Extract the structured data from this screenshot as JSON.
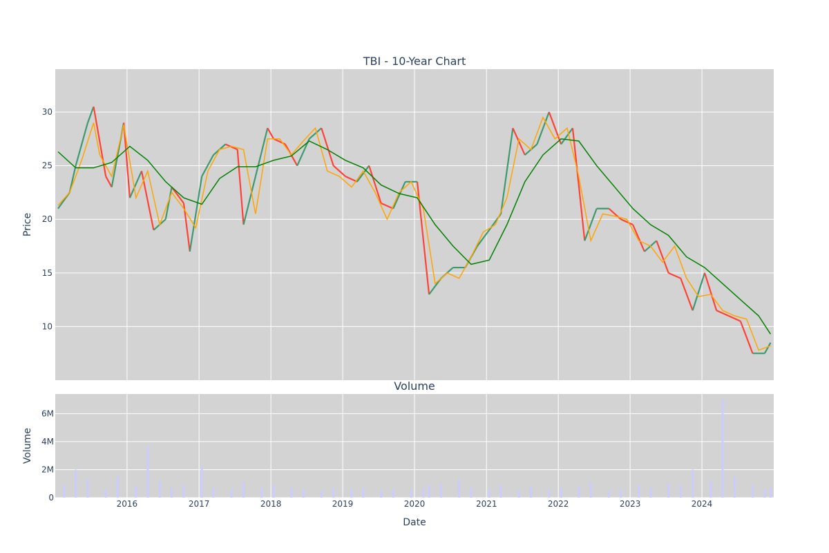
{
  "chart_data": [
    {
      "type": "line",
      "title": "TBI - 10-Year Chart",
      "ylabel": "Price",
      "ylim": [
        5,
        34
      ],
      "xlim": [
        "2015-01-01",
        "2024-12-31"
      ],
      "y_ticks": [
        10,
        15,
        20,
        25,
        30
      ],
      "grid": true,
      "background": "#d3d3d3",
      "series": [
        {
          "role": "price",
          "color_up": "#3d9970",
          "color_down": "#ff4136",
          "dates": [
            "2015-01",
            "2015-03",
            "2015-04",
            "2015-06",
            "2015-07",
            "2015-09",
            "2015-10",
            "2015-12",
            "2016-01",
            "2016-03",
            "2016-05",
            "2016-07",
            "2016-08",
            "2016-10",
            "2016-11",
            "2017-01",
            "2017-03",
            "2017-05",
            "2017-07",
            "2017-08",
            "2017-10",
            "2017-12",
            "2018-01",
            "2018-03",
            "2018-05",
            "2018-07",
            "2018-09",
            "2018-11",
            "2019-01",
            "2019-03",
            "2019-05",
            "2019-07",
            "2019-09",
            "2019-11",
            "2020-01",
            "2020-03",
            "2020-05",
            "2020-07",
            "2020-09",
            "2020-11",
            "2021-01",
            "2021-03",
            "2021-05",
            "2021-07",
            "2021-09",
            "2021-11",
            "2022-01",
            "2022-03",
            "2022-05",
            "2022-07",
            "2022-09",
            "2022-11",
            "2023-01",
            "2023-03",
            "2023-05",
            "2023-07",
            "2023-09",
            "2023-11",
            "2024-01",
            "2024-03",
            "2024-05",
            "2024-07",
            "2024-09",
            "2024-11",
            "2024-12"
          ],
          "values": [
            21.0,
            22.5,
            25.0,
            29.0,
            30.5,
            24.0,
            23.0,
            29.0,
            22.0,
            24.5,
            19.0,
            20.0,
            23.0,
            21.5,
            17.0,
            24.0,
            26.0,
            27.0,
            26.5,
            19.5,
            24.0,
            28.5,
            27.5,
            27.0,
            25.0,
            27.5,
            28.5,
            25.0,
            24.0,
            23.5,
            25.0,
            21.5,
            21.0,
            23.5,
            23.5,
            13.0,
            14.5,
            15.5,
            15.5,
            17.5,
            19.0,
            20.5,
            28.5,
            26.0,
            27.0,
            30.0,
            27.0,
            28.5,
            18.0,
            21.0,
            21.0,
            20.0,
            19.5,
            17.0,
            18.0,
            15.0,
            14.5,
            11.5,
            15.0,
            11.5,
            11.0,
            10.5,
            7.5,
            7.5,
            8.5
          ]
        },
        {
          "role": "ma-short",
          "color": "#ffa500",
          "dates": [
            "2015-01",
            "2015-03",
            "2015-05",
            "2015-07",
            "2015-08",
            "2015-10",
            "2015-12",
            "2016-02",
            "2016-04",
            "2016-06",
            "2016-08",
            "2016-10",
            "2016-12",
            "2017-02",
            "2017-04",
            "2017-06",
            "2017-08",
            "2017-10",
            "2017-12",
            "2018-02",
            "2018-04",
            "2018-06",
            "2018-08",
            "2018-10",
            "2018-12",
            "2019-02",
            "2019-04",
            "2019-06",
            "2019-08",
            "2019-10",
            "2019-12",
            "2020-02",
            "2020-04",
            "2020-06",
            "2020-08",
            "2020-10",
            "2020-12",
            "2021-02",
            "2021-04",
            "2021-06",
            "2021-08",
            "2021-10",
            "2021-12",
            "2022-02",
            "2022-04",
            "2022-06",
            "2022-08",
            "2022-10",
            "2022-12",
            "2023-02",
            "2023-04",
            "2023-06",
            "2023-08",
            "2023-10",
            "2023-12",
            "2024-02",
            "2024-04",
            "2024-06",
            "2024-08",
            "2024-10",
            "2024-12"
          ],
          "values": [
            21.3,
            22.5,
            25.5,
            29.0,
            26.0,
            24.0,
            28.8,
            22.0,
            24.5,
            19.5,
            22.5,
            21.0,
            19.2,
            24.5,
            26.5,
            26.8,
            26.5,
            20.5,
            27.5,
            27.5,
            26.0,
            27.3,
            28.5,
            24.5,
            24.0,
            23.0,
            24.5,
            22.5,
            20.0,
            22.5,
            23.5,
            21.0,
            14.0,
            15.0,
            14.5,
            16.5,
            18.8,
            19.5,
            22.0,
            27.5,
            26.5,
            29.5,
            27.5,
            28.5,
            24.0,
            18.0,
            20.5,
            20.3,
            20.0,
            18.0,
            17.5,
            16.0,
            17.5,
            14.5,
            12.8,
            13.0,
            11.5,
            11.0,
            10.7,
            7.8,
            8.2
          ]
        },
        {
          "role": "ma-long",
          "color": "#008000",
          "dates": [
            "2015-01",
            "2015-04",
            "2015-07",
            "2015-10",
            "2016-01",
            "2016-04",
            "2016-07",
            "2016-10",
            "2017-01",
            "2017-04",
            "2017-07",
            "2017-10",
            "2018-01",
            "2018-04",
            "2018-07",
            "2018-10",
            "2019-01",
            "2019-04",
            "2019-07",
            "2019-10",
            "2020-01",
            "2020-04",
            "2020-07",
            "2020-10",
            "2021-01",
            "2021-04",
            "2021-07",
            "2021-10",
            "2022-01",
            "2022-04",
            "2022-07",
            "2022-10",
            "2023-01",
            "2023-04",
            "2023-07",
            "2023-10",
            "2024-01",
            "2024-04",
            "2024-07",
            "2024-10",
            "2024-12"
          ],
          "values": [
            26.3,
            24.8,
            24.8,
            25.3,
            26.8,
            25.5,
            23.5,
            22.0,
            21.4,
            23.8,
            24.9,
            24.9,
            25.5,
            25.9,
            27.3,
            26.5,
            25.5,
            24.8,
            23.2,
            22.4,
            22.0,
            19.5,
            17.5,
            15.8,
            16.2,
            19.5,
            23.5,
            26.0,
            27.5,
            27.3,
            25.0,
            23.0,
            21.0,
            19.5,
            18.5,
            16.5,
            15.5,
            14.0,
            12.5,
            11.0,
            9.3
          ]
        }
      ]
    },
    {
      "type": "bar",
      "title": "Volume",
      "xlabel": "Date",
      "ylabel": "Volume",
      "ylim": [
        0,
        7400000
      ],
      "y_ticks": [
        {
          "value": 0,
          "label": "0"
        },
        {
          "value": 2000000,
          "label": "2M"
        },
        {
          "value": 4000000,
          "label": "4M"
        },
        {
          "value": 6000000,
          "label": "6M"
        }
      ],
      "x_ticks": [
        "2016",
        "2017",
        "2018",
        "2019",
        "2020",
        "2021",
        "2022",
        "2023",
        "2024"
      ],
      "bar_color": "#ccccff",
      "grid": true,
      "background": "#d3d3d3",
      "dates": [
        "2015-02",
        "2015-04",
        "2015-06",
        "2015-09",
        "2015-11",
        "2016-02",
        "2016-04",
        "2016-06",
        "2016-08",
        "2016-10",
        "2017-01",
        "2017-03",
        "2017-06",
        "2017-08",
        "2017-11",
        "2018-01",
        "2018-04",
        "2018-06",
        "2018-09",
        "2018-11",
        "2019-02",
        "2019-04",
        "2019-07",
        "2019-09",
        "2019-12",
        "2020-02",
        "2020-03",
        "2020-05",
        "2020-08",
        "2020-10",
        "2021-01",
        "2021-03",
        "2021-06",
        "2021-08",
        "2021-11",
        "2022-01",
        "2022-04",
        "2022-06",
        "2022-09",
        "2022-11",
        "2023-02",
        "2023-04",
        "2023-07",
        "2023-09",
        "2023-11",
        "2024-02",
        "2024-04",
        "2024-06",
        "2024-09",
        "2024-11",
        "2024-12"
      ],
      "values": [
        900000,
        2000000,
        1300000,
        600000,
        1500000,
        800000,
        3700000,
        1200000,
        700000,
        900000,
        2200000,
        700000,
        600000,
        1100000,
        700000,
        900000,
        700000,
        600000,
        500000,
        700000,
        600000,
        700000,
        500000,
        600000,
        500000,
        700000,
        900000,
        1000000,
        1300000,
        700000,
        600000,
        900000,
        500000,
        800000,
        600000,
        700000,
        800000,
        1100000,
        500000,
        600000,
        900000,
        700000,
        1000000,
        900000,
        2000000,
        1200000,
        7000000,
        1500000,
        900000,
        600000,
        700000
      ]
    }
  ]
}
